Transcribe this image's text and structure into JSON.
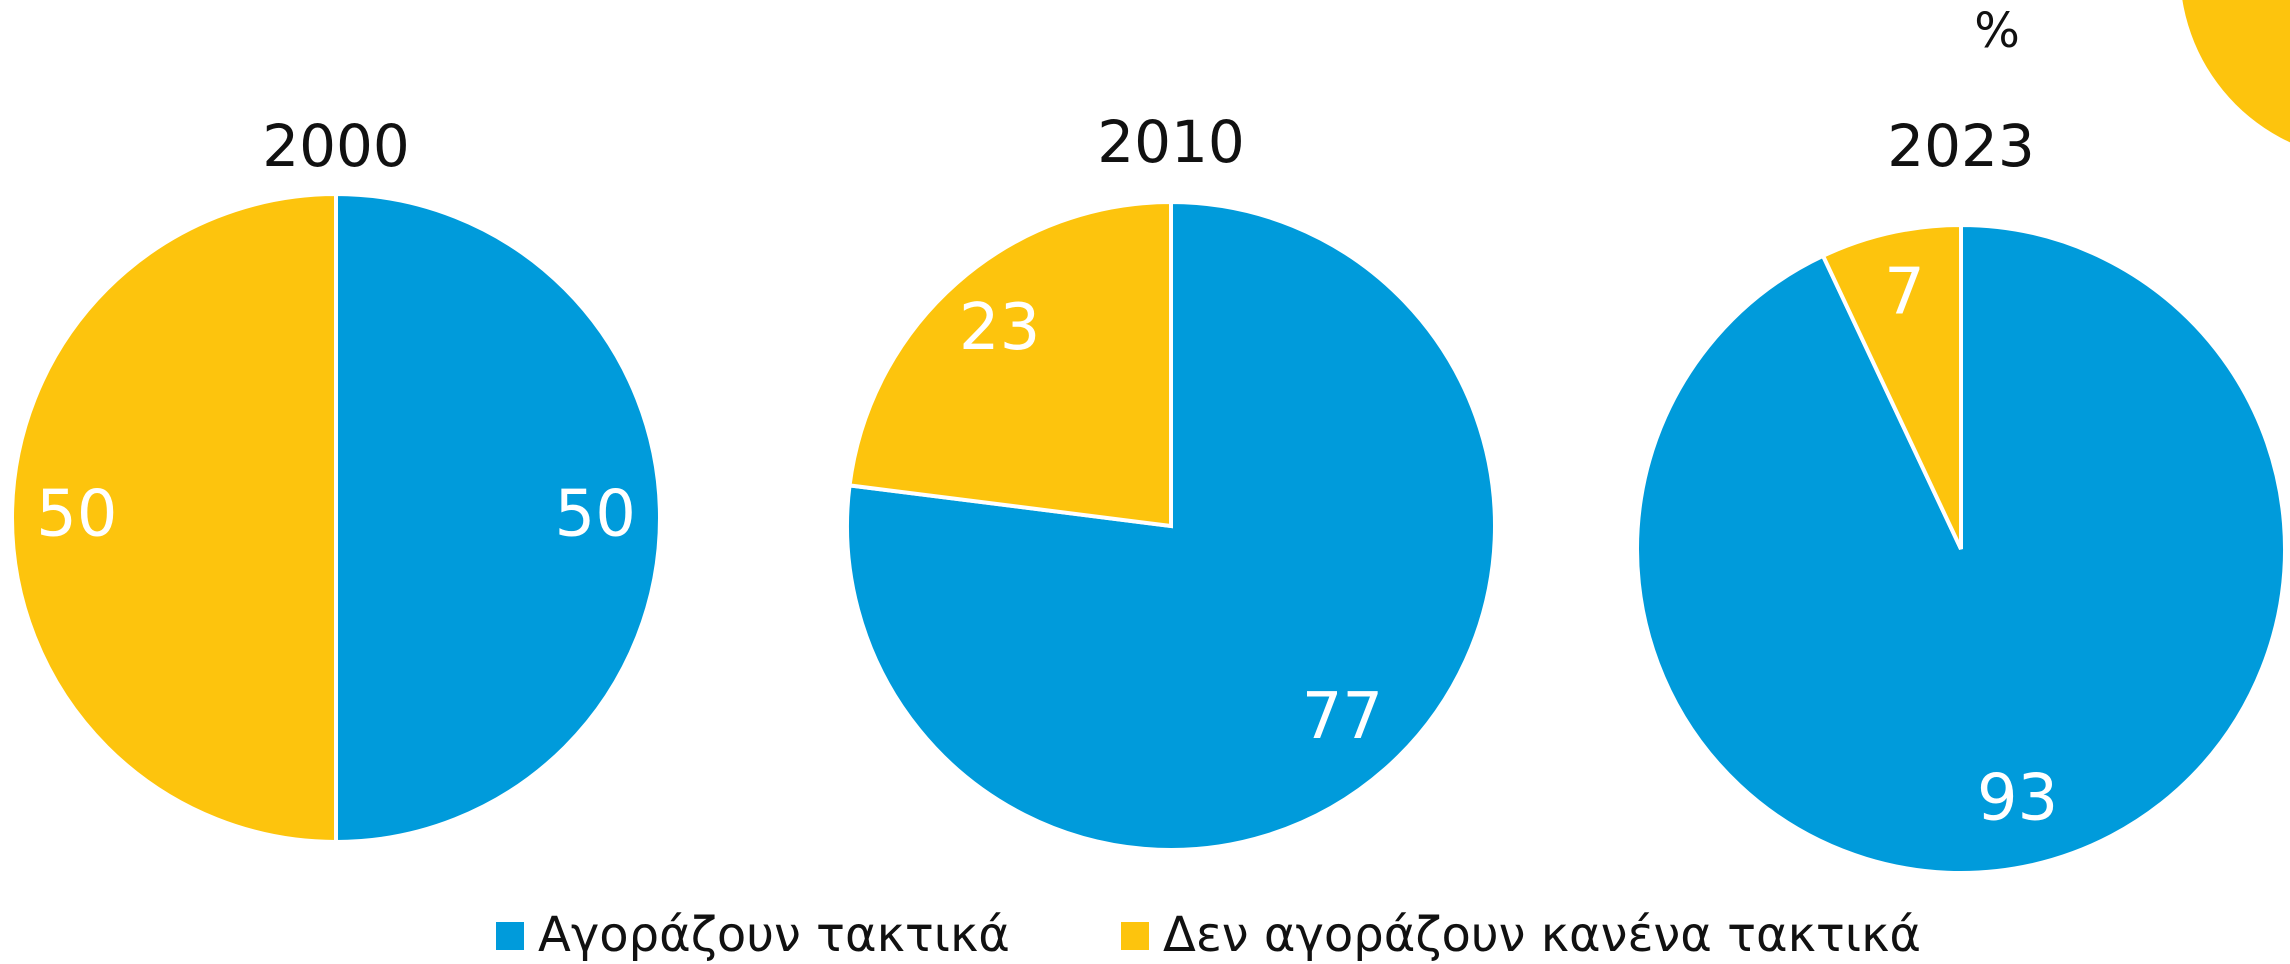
{
  "unit": "%",
  "legend": [
    {
      "name": "Αγοράζουν τακτικά",
      "color": "#009bdb"
    },
    {
      "name": "Δεν αγοράζουν κανένα τακτικά",
      "color": "#fdc40d"
    }
  ],
  "chart_data": [
    {
      "type": "pie",
      "title": "2000",
      "values": [
        50,
        50
      ]
    },
    {
      "type": "pie",
      "title": "2010",
      "values": [
        77,
        23
      ]
    },
    {
      "type": "pie",
      "title": "2023",
      "values": [
        93,
        7
      ]
    }
  ]
}
